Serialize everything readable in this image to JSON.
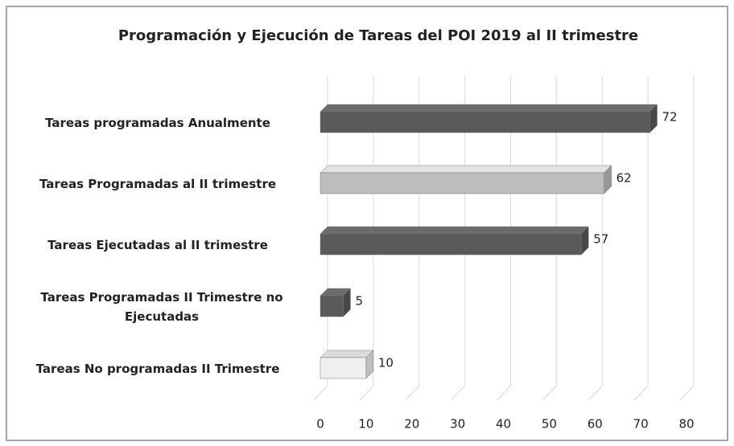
{
  "chart_data": {
    "type": "bar",
    "orientation": "horizontal",
    "title": "Programación y Ejecución de Tareas del POI 2019 al II trimestre",
    "categories": [
      "Tareas programadas Anualmente",
      "Tareas Programadas al II trimestre",
      "Tareas Ejecutadas al II trimestre",
      "Tareas Programadas II Trimestre no Ejecutadas",
      "Tareas No programadas II Trimestre"
    ],
    "values": [
      72,
      62,
      57,
      5,
      10
    ],
    "colors": [
      "#5a5a5a",
      "#bdbdbd",
      "#5a5a5a",
      "#5a5a5a",
      "#efefef"
    ],
    "xlim": [
      0,
      80
    ],
    "xticks": [
      0,
      10,
      20,
      30,
      40,
      50,
      60,
      70,
      80
    ],
    "grid": true
  }
}
